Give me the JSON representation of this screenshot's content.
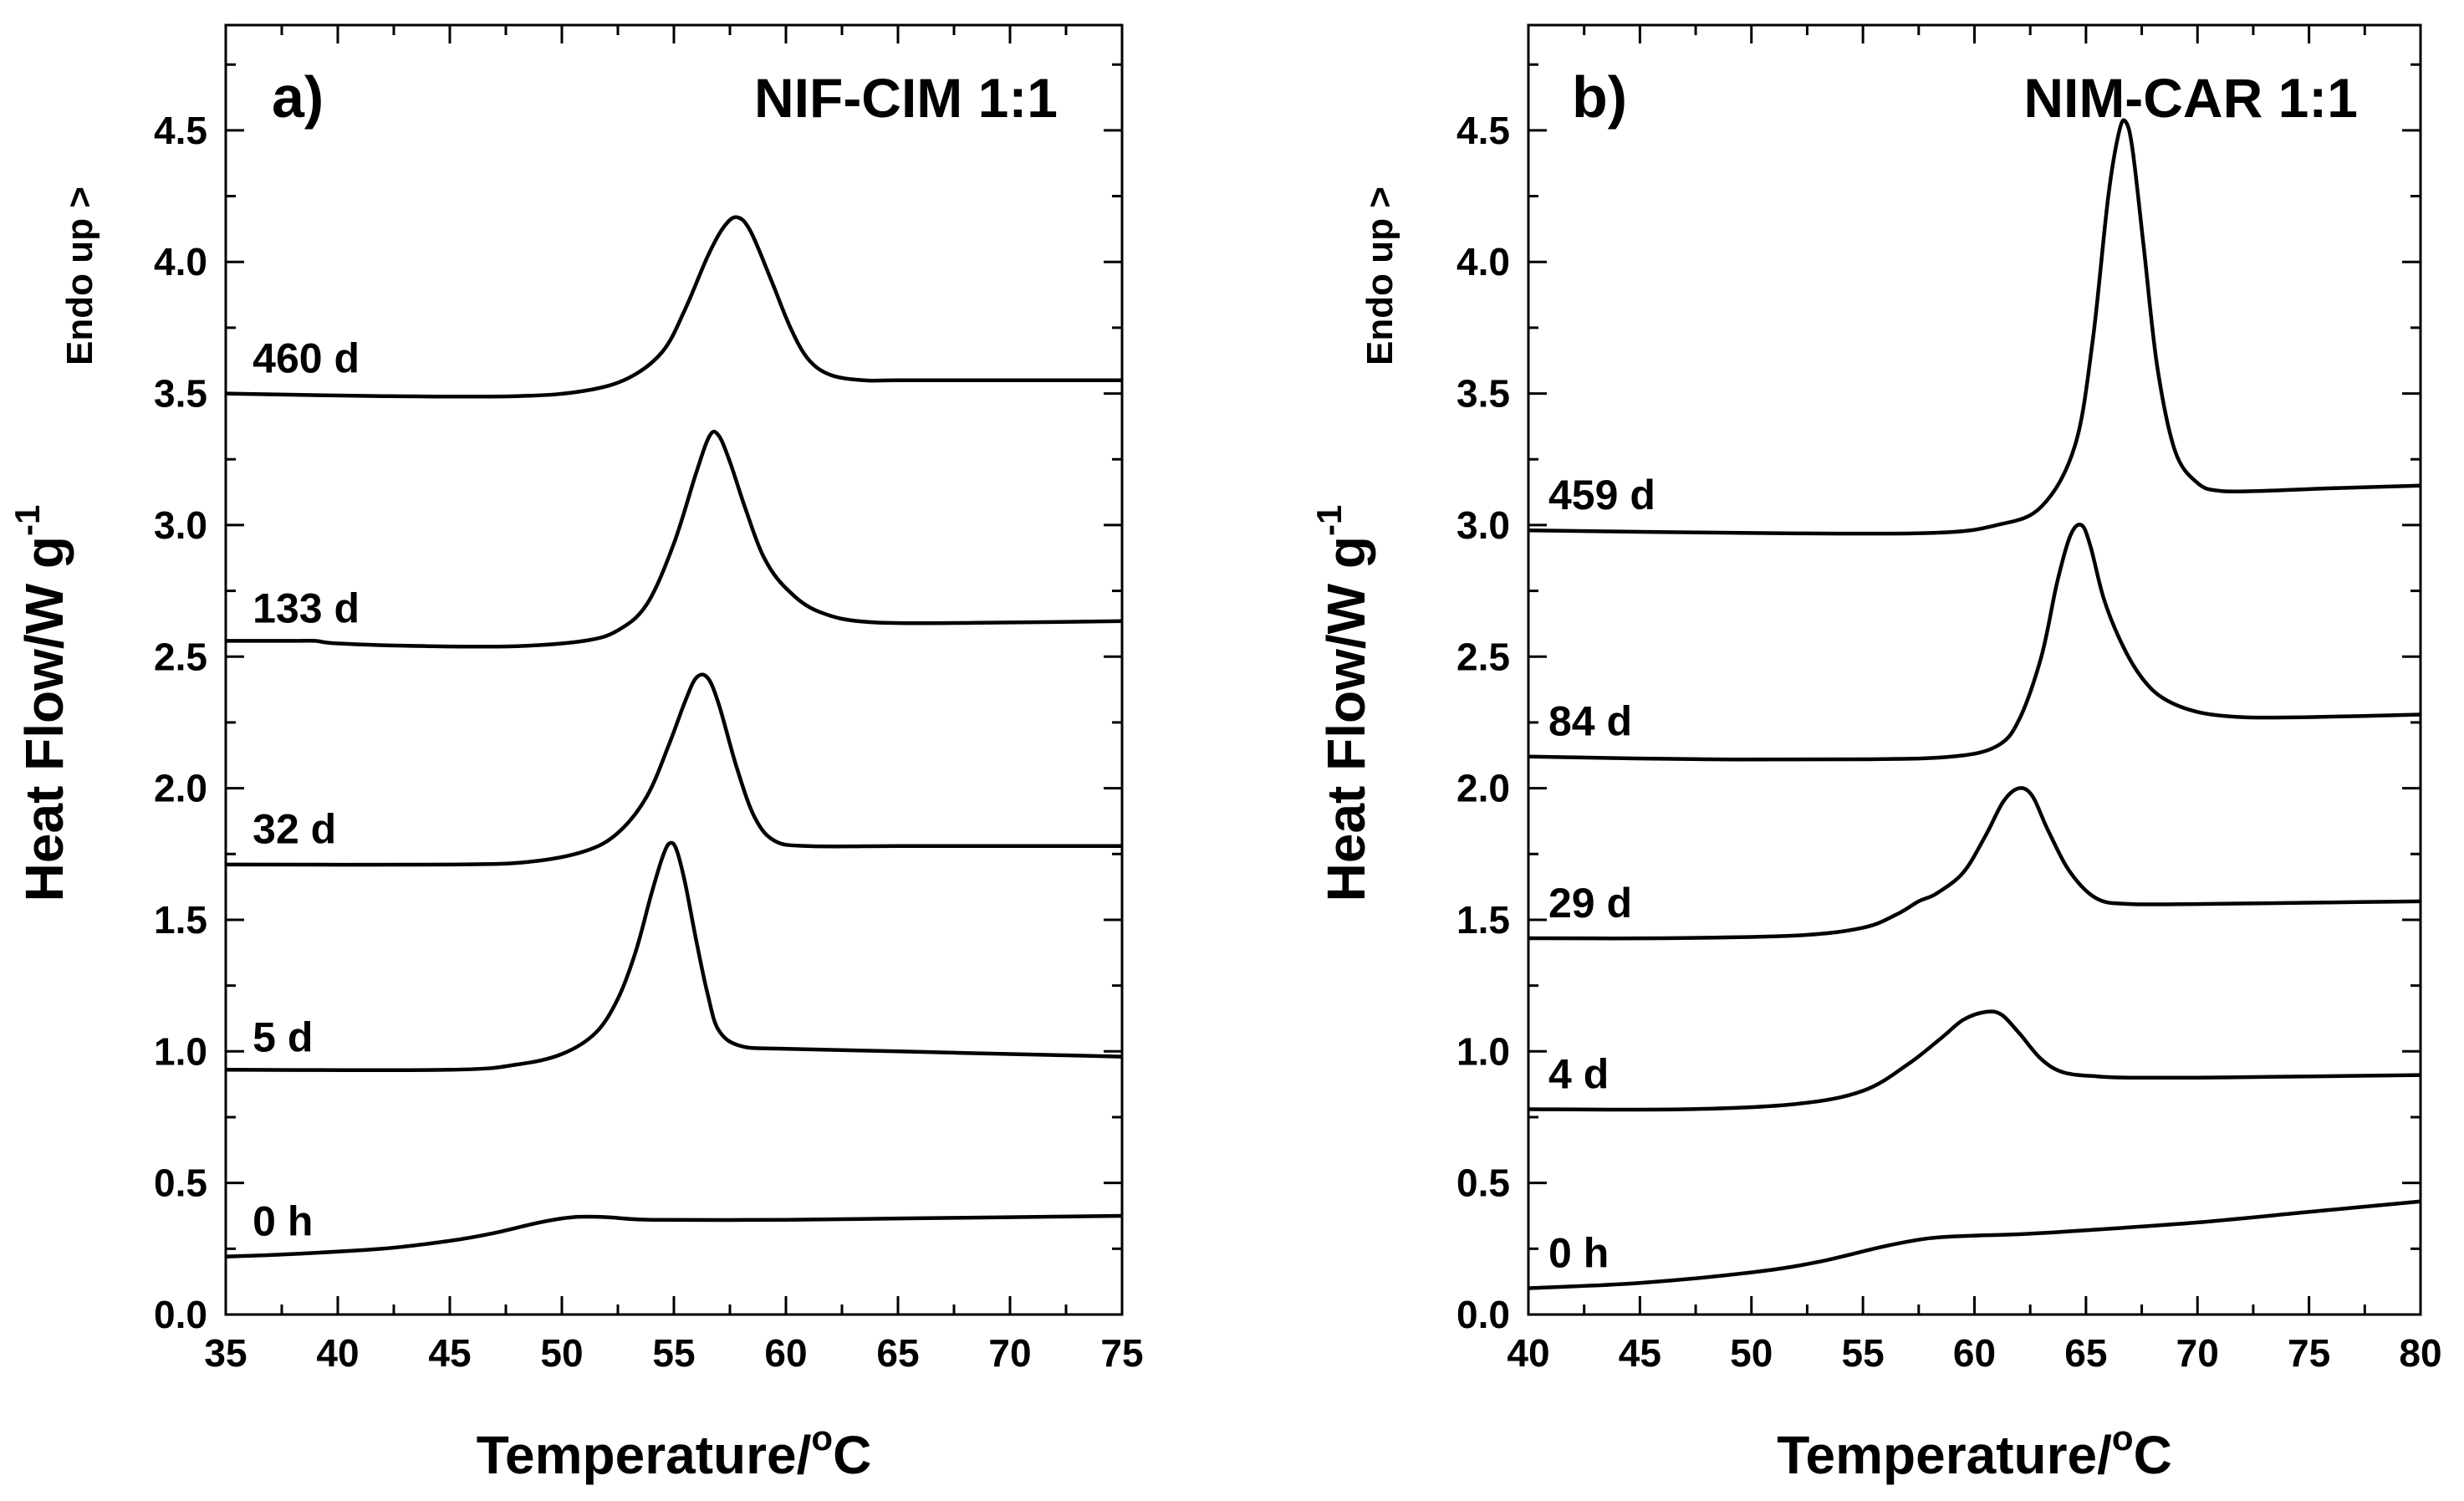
{
  "chart_data": [
    {
      "type": "line",
      "panel": "a)",
      "title": "NIF-CIM 1:1",
      "xlabel": "Temperature/",
      "xlabel_sup": "o",
      "xlabel_unit": "C",
      "ylabel": "Heat Flow/W g",
      "ylabel_sup": "-1",
      "ylabel_note": "Endo up >",
      "xlim": [
        35,
        75
      ],
      "ylim": [
        0.0,
        4.9
      ],
      "xticks": [
        "35",
        "40",
        "45",
        "50",
        "55",
        "60",
        "65",
        "70",
        "75"
      ],
      "yticks": [
        "0.0",
        "0.5",
        "1.0",
        "1.5",
        "2.0",
        "2.5",
        "3.0",
        "3.5",
        "4.0",
        "4.5"
      ],
      "series": [
        {
          "name": "0 h",
          "x": [
            35,
            38,
            42,
            45,
            47,
            49,
            50.5,
            52,
            54,
            60,
            65,
            70,
            75
          ],
          "y": [
            0.22,
            0.23,
            0.25,
            0.28,
            0.31,
            0.35,
            0.37,
            0.37,
            0.36,
            0.36,
            0.365,
            0.37,
            0.375
          ]
        },
        {
          "name": "5 d",
          "x": [
            35,
            45,
            48,
            50,
            51.5,
            52.5,
            53.3,
            54,
            54.5,
            54.8,
            55.1,
            55.5,
            56,
            56.5,
            57,
            58,
            60,
            65,
            70,
            75
          ],
          "y": [
            0.93,
            0.93,
            0.95,
            0.99,
            1.07,
            1.2,
            1.38,
            1.6,
            1.74,
            1.79,
            1.77,
            1.64,
            1.42,
            1.22,
            1.08,
            1.02,
            1.01,
            1.0,
            0.99,
            0.98
          ]
        },
        {
          "name": "32 d",
          "x": [
            35,
            45,
            48.5,
            51,
            52.5,
            53.8,
            54.8,
            55.5,
            56,
            56.5,
            57,
            57.8,
            58.6,
            59.5,
            61,
            65,
            70,
            75
          ],
          "y": [
            1.71,
            1.71,
            1.72,
            1.76,
            1.83,
            1.97,
            2.17,
            2.33,
            2.42,
            2.42,
            2.32,
            2.08,
            1.89,
            1.8,
            1.78,
            1.78,
            1.78,
            1.78
          ]
        },
        {
          "name": "133 d",
          "x": [
            35,
            38,
            39,
            40,
            44,
            48,
            51,
            52.5,
            53.8,
            55,
            56,
            56.6,
            57,
            57.5,
            58.2,
            59,
            60,
            61.5,
            64,
            70,
            75
          ],
          "y": [
            2.56,
            2.56,
            2.56,
            2.55,
            2.54,
            2.54,
            2.56,
            2.6,
            2.7,
            2.93,
            3.2,
            3.34,
            3.34,
            3.24,
            3.06,
            2.88,
            2.76,
            2.67,
            2.63,
            2.63,
            2.635
          ]
        },
        {
          "name": "460 d",
          "x": [
            35,
            42,
            48,
            51,
            53,
            54.5,
            55.5,
            56.5,
            57.2,
            57.8,
            58.4,
            59.3,
            60.2,
            61,
            62,
            63.5,
            65,
            70,
            75
          ],
          "y": [
            3.5,
            3.49,
            3.49,
            3.51,
            3.56,
            3.66,
            3.82,
            4.02,
            4.13,
            4.17,
            4.12,
            3.94,
            3.75,
            3.63,
            3.57,
            3.55,
            3.55,
            3.55,
            3.55
          ]
        }
      ],
      "annotations": [
        "460 d",
        "133 d",
        "32 d",
        "5 d",
        "0 h"
      ]
    },
    {
      "type": "line",
      "panel": "b)",
      "title": "NIM-CAR 1:1",
      "xlabel": "Temperature/",
      "xlabel_sup": "o",
      "xlabel_unit": "C",
      "ylabel": "Heat Flow/W g",
      "ylabel_sup": "-1",
      "ylabel_note": "Endo up >",
      "xlim": [
        40,
        80
      ],
      "ylim": [
        0.0,
        4.9
      ],
      "xticks": [
        "40",
        "45",
        "50",
        "55",
        "60",
        "65",
        "70",
        "75",
        "80"
      ],
      "yticks": [
        "0.0",
        "0.5",
        "1.0",
        "1.5",
        "2.0",
        "2.5",
        "3.0",
        "3.5",
        "4.0",
        "4.5"
      ],
      "series": [
        {
          "name": "0 h",
          "x": [
            40,
            45,
            50,
            53,
            56,
            58,
            60,
            62,
            65,
            70,
            75,
            80
          ],
          "y": [
            0.1,
            0.12,
            0.16,
            0.2,
            0.26,
            0.29,
            0.3,
            0.305,
            0.32,
            0.35,
            0.39,
            0.43
          ]
        },
        {
          "name": "4 d",
          "x": [
            40,
            47,
            52,
            55,
            57,
            58.5,
            59.5,
            60.5,
            61.2,
            62,
            63,
            64,
            65.5,
            67,
            70,
            75,
            80
          ],
          "y": [
            0.78,
            0.78,
            0.8,
            0.85,
            0.95,
            1.05,
            1.12,
            1.15,
            1.14,
            1.07,
            0.97,
            0.92,
            0.905,
            0.9,
            0.9,
            0.905,
            0.91
          ]
        },
        {
          "name": "29 d",
          "x": [
            40,
            46,
            52,
            55,
            56.5,
            57.5,
            58.3,
            59.5,
            60.5,
            61.3,
            62,
            62.6,
            63.3,
            64.3,
            65.5,
            67,
            70,
            75,
            80
          ],
          "y": [
            1.43,
            1.43,
            1.44,
            1.47,
            1.52,
            1.57,
            1.6,
            1.68,
            1.82,
            1.95,
            2.0,
            1.97,
            1.84,
            1.68,
            1.58,
            1.56,
            1.56,
            1.565,
            1.57
          ]
        },
        {
          "name": "84 d",
          "x": [
            40,
            48,
            55,
            59,
            61,
            62,
            63,
            63.7,
            64.3,
            64.8,
            65.2,
            65.8,
            66.6,
            67.5,
            68.5,
            70,
            72,
            75,
            80
          ],
          "y": [
            2.12,
            2.11,
            2.11,
            2.12,
            2.16,
            2.26,
            2.5,
            2.78,
            2.96,
            3.0,
            2.92,
            2.72,
            2.55,
            2.42,
            2.34,
            2.29,
            2.27,
            2.27,
            2.28
          ]
        },
        {
          "name": "459 d",
          "x": [
            40,
            50,
            58,
            61,
            63,
            64.5,
            65.3,
            66,
            66.5,
            66.8,
            67.1,
            67.6,
            68.2,
            69,
            70,
            71,
            73,
            76,
            80
          ],
          "y": [
            2.98,
            2.97,
            2.97,
            3.0,
            3.07,
            3.3,
            3.7,
            4.25,
            4.5,
            4.53,
            4.42,
            4.05,
            3.6,
            3.28,
            3.16,
            3.13,
            3.13,
            3.14,
            3.15
          ]
        }
      ],
      "annotations": [
        "459 d",
        "84 d",
        "29 d",
        "4 d",
        "0 h"
      ]
    }
  ]
}
